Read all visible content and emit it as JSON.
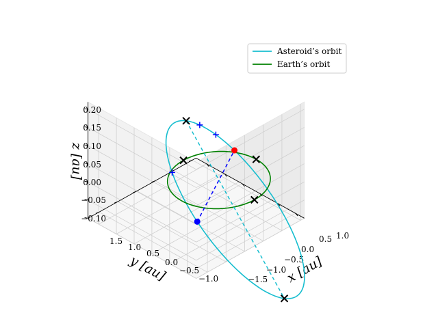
{
  "chart_data": {
    "type": "line",
    "projection": "3d",
    "xlabel": "x [au]",
    "ylabel": "y [au]",
    "zlabel": "z [au]",
    "xlim": [
      -1.8,
      1.25
    ],
    "ylim": [
      -1.1,
      1.8
    ],
    "zlim": [
      -0.1,
      0.22
    ],
    "x_ticks": [
      "−1.5",
      "−1.0",
      "−0.5",
      "0.0",
      "0.5",
      "1.0"
    ],
    "y_ticks": [
      "1.5",
      "1.0",
      "0.5",
      "0.0",
      "−0.5",
      "−1.0"
    ],
    "z_ticks": [
      "0.20",
      "0.15",
      "0.10",
      "0.05",
      "0.00",
      "−0.05",
      "−0.10"
    ],
    "grid": true,
    "legend": {
      "placement": "upper-right",
      "entries": [
        "Asteroid’s orbit",
        "Earth’s orbit"
      ]
    },
    "series": [
      {
        "name": "Asteroid’s orbit",
        "kind": "ellipse",
        "color": "#17becf",
        "a": 1.4,
        "e": 0.333,
        "inclination_deg": 8,
        "ascending_node_deg": 60,
        "perihelion_arg_deg": 120
      },
      {
        "name": "Earth’s orbit",
        "kind": "circle",
        "color": "#008000",
        "radius": 1.0
      }
    ],
    "markers": [
      {
        "kind": "apsides-line",
        "color": "#17becf",
        "style": "dashed"
      },
      {
        "kind": "nodes-line",
        "color": "#0000ff",
        "style": "dashed"
      },
      {
        "kind": "dot",
        "color": "#0000ff",
        "name": "ascending node"
      },
      {
        "kind": "dot",
        "color": "#ff0000",
        "name": "descending node"
      }
    ]
  }
}
